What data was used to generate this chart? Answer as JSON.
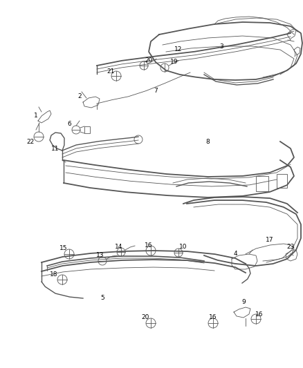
{
  "bg_color": "#ffffff",
  "line_color": "#555555",
  "lw_main": 1.0,
  "lw_thin": 0.6,
  "figsize": [
    4.38,
    5.33
  ],
  "dpi": 100,
  "fs": 6.5
}
